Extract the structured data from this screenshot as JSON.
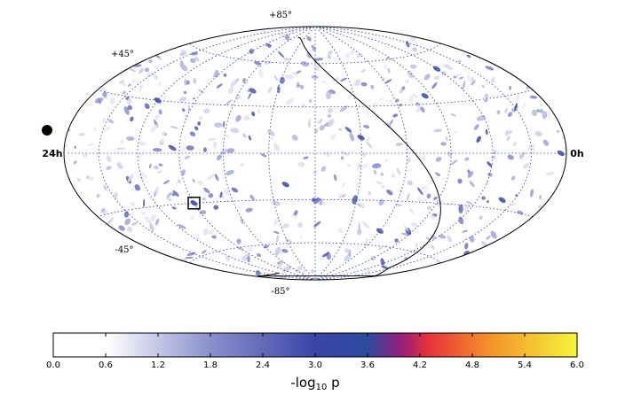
{
  "chart_data": {
    "type": "heatmap",
    "projection": "Hammer-Aitoff",
    "title": "",
    "subtitle": "",
    "grid": true,
    "ra_labels": {
      "left": "24h",
      "right": "0h"
    },
    "dec_labels": {
      "top": "+85°",
      "upper_left": "+45°",
      "lower_left": "-45°",
      "bottom": "-85°"
    },
    "marker_dot": {
      "ra_label": "24h-edge",
      "note": ""
    },
    "highlight_box": {
      "ra_deg": 270,
      "dec_deg": -30
    },
    "hotspots": [
      {
        "ra_deg": 95,
        "dec_deg": 35,
        "neglog10p": 3.2
      },
      {
        "ra_deg": 150,
        "dec_deg": 10,
        "neglog10p": 3.0
      },
      {
        "ra_deg": 200,
        "dec_deg": -20,
        "neglog10p": 3.1
      },
      {
        "ra_deg": 40,
        "dec_deg": -25,
        "neglog10p": 3.0
      },
      {
        "ra_deg": 300,
        "dec_deg": 30,
        "neglog10p": 3.0
      },
      {
        "ra_deg": 5,
        "dec_deg": 0,
        "neglog10p": 3.3
      },
      {
        "ra_deg": 270,
        "dec_deg": -30,
        "neglog10p": 3.4
      },
      {
        "ra_deg": 60,
        "dec_deg": 50,
        "neglog10p": 2.9
      },
      {
        "ra_deg": 230,
        "dec_deg": 40,
        "neglog10p": 2.8
      },
      {
        "ra_deg": 120,
        "dec_deg": -50,
        "neglog10p": 2.8
      }
    ],
    "colorbar": {
      "label_prefix": "-log",
      "label_sub": "10",
      "label_suffix": " p",
      "min": 0.0,
      "max": 6.0,
      "ticks": [
        "0.0",
        "0.6",
        "1.2",
        "1.8",
        "2.4",
        "3.0",
        "3.6",
        "4.2",
        "4.8",
        "5.4",
        "6.0"
      ],
      "stops": [
        {
          "v": 0.0,
          "color": "#ffffff"
        },
        {
          "v": 0.6,
          "color": "#ffffff"
        },
        {
          "v": 1.8,
          "color": "#8a8fcc"
        },
        {
          "v": 3.0,
          "color": "#3a46a6"
        },
        {
          "v": 3.6,
          "color": "#2c4aa0"
        },
        {
          "v": 4.0,
          "color": "#9a1e7a"
        },
        {
          "v": 4.3,
          "color": "#e8323c"
        },
        {
          "v": 5.0,
          "color": "#f5922a"
        },
        {
          "v": 6.0,
          "color": "#f5f53a"
        }
      ]
    }
  }
}
